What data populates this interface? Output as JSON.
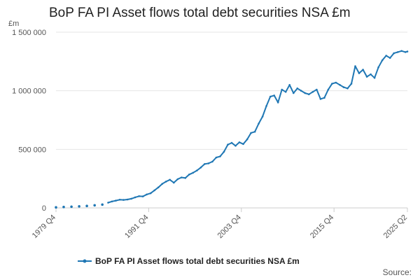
{
  "chart_data": {
    "type": "line",
    "title": "BoP FA PI Asset flows total debt securities NSA £m",
    "ylabel": "£m",
    "xlabel": "",
    "ylim": [
      0,
      1500000
    ],
    "yticks": [
      0,
      500000,
      1000000,
      1500000
    ],
    "ytick_labels": [
      "0",
      "500 000",
      "1 000 000",
      "1 500 000"
    ],
    "x_range": [
      "1979 Q4",
      "2025 Q2"
    ],
    "xticks": [
      "1979 Q4",
      "1991 Q4",
      "2003 Q4",
      "2015 Q4",
      "2025 Q2"
    ],
    "grid": "horizontal",
    "legend_position": "bottom",
    "color": "#1f77b4",
    "series": [
      {
        "name": "BoP FA PI Asset flows total debt securities NSA £m",
        "x": [
          "1979 Q4",
          "1980 Q4",
          "1981 Q4",
          "1982 Q4",
          "1983 Q4",
          "1984 Q4",
          "1985 Q4",
          "1986 Q3",
          "1987 Q1",
          "1987 Q3",
          "1988 Q1",
          "1988 Q3",
          "1989 Q1",
          "1989 Q3",
          "1990 Q1",
          "1990 Q3",
          "1991 Q1",
          "1991 Q3",
          "1992 Q1",
          "1992 Q3",
          "1993 Q1",
          "1993 Q3",
          "1994 Q1",
          "1994 Q3",
          "1995 Q1",
          "1995 Q3",
          "1996 Q1",
          "1996 Q3",
          "1997 Q1",
          "1997 Q3",
          "1998 Q1",
          "1998 Q3",
          "1999 Q1",
          "1999 Q3",
          "2000 Q1",
          "2000 Q3",
          "2001 Q1",
          "2001 Q3",
          "2002 Q1",
          "2002 Q3",
          "2003 Q1",
          "2003 Q3",
          "2004 Q1",
          "2004 Q3",
          "2005 Q1",
          "2005 Q3",
          "2006 Q1",
          "2006 Q3",
          "2007 Q1",
          "2007 Q3",
          "2008 Q1",
          "2008 Q3",
          "2009 Q1",
          "2009 Q3",
          "2010 Q1",
          "2010 Q3",
          "2011 Q1",
          "2011 Q3",
          "2012 Q1",
          "2012 Q3",
          "2013 Q1",
          "2013 Q3",
          "2014 Q1",
          "2014 Q3",
          "2015 Q1",
          "2015 Q3",
          "2016 Q1",
          "2016 Q3",
          "2017 Q1",
          "2017 Q3",
          "2018 Q1",
          "2018 Q3",
          "2019 Q1",
          "2019 Q3",
          "2020 Q1",
          "2020 Q3",
          "2021 Q1",
          "2021 Q3",
          "2022 Q1",
          "2022 Q3",
          "2023 Q1",
          "2023 Q3",
          "2024 Q1",
          "2024 Q3",
          "2025 Q1",
          "2025 Q2"
        ],
        "values": [
          5000,
          8000,
          10000,
          13000,
          17000,
          22000,
          28000,
          45000,
          55000,
          62000,
          70000,
          68000,
          72000,
          78000,
          90000,
          100000,
          98000,
          115000,
          125000,
          150000,
          175000,
          205000,
          225000,
          240000,
          215000,
          245000,
          260000,
          255000,
          285000,
          300000,
          320000,
          345000,
          375000,
          380000,
          395000,
          430000,
          440000,
          480000,
          540000,
          555000,
          530000,
          560000,
          545000,
          585000,
          640000,
          650000,
          720000,
          780000,
          870000,
          950000,
          960000,
          900000,
          1010000,
          990000,
          1050000,
          980000,
          1020000,
          1000000,
          980000,
          970000,
          990000,
          1010000,
          930000,
          940000,
          1010000,
          1060000,
          1070000,
          1050000,
          1030000,
          1020000,
          1060000,
          1210000,
          1150000,
          1180000,
          1120000,
          1140000,
          1110000,
          1200000,
          1260000,
          1300000,
          1280000,
          1320000,
          1330000,
          1340000,
          1330000,
          1335000
        ]
      }
    ]
  },
  "source_label": "Source:"
}
